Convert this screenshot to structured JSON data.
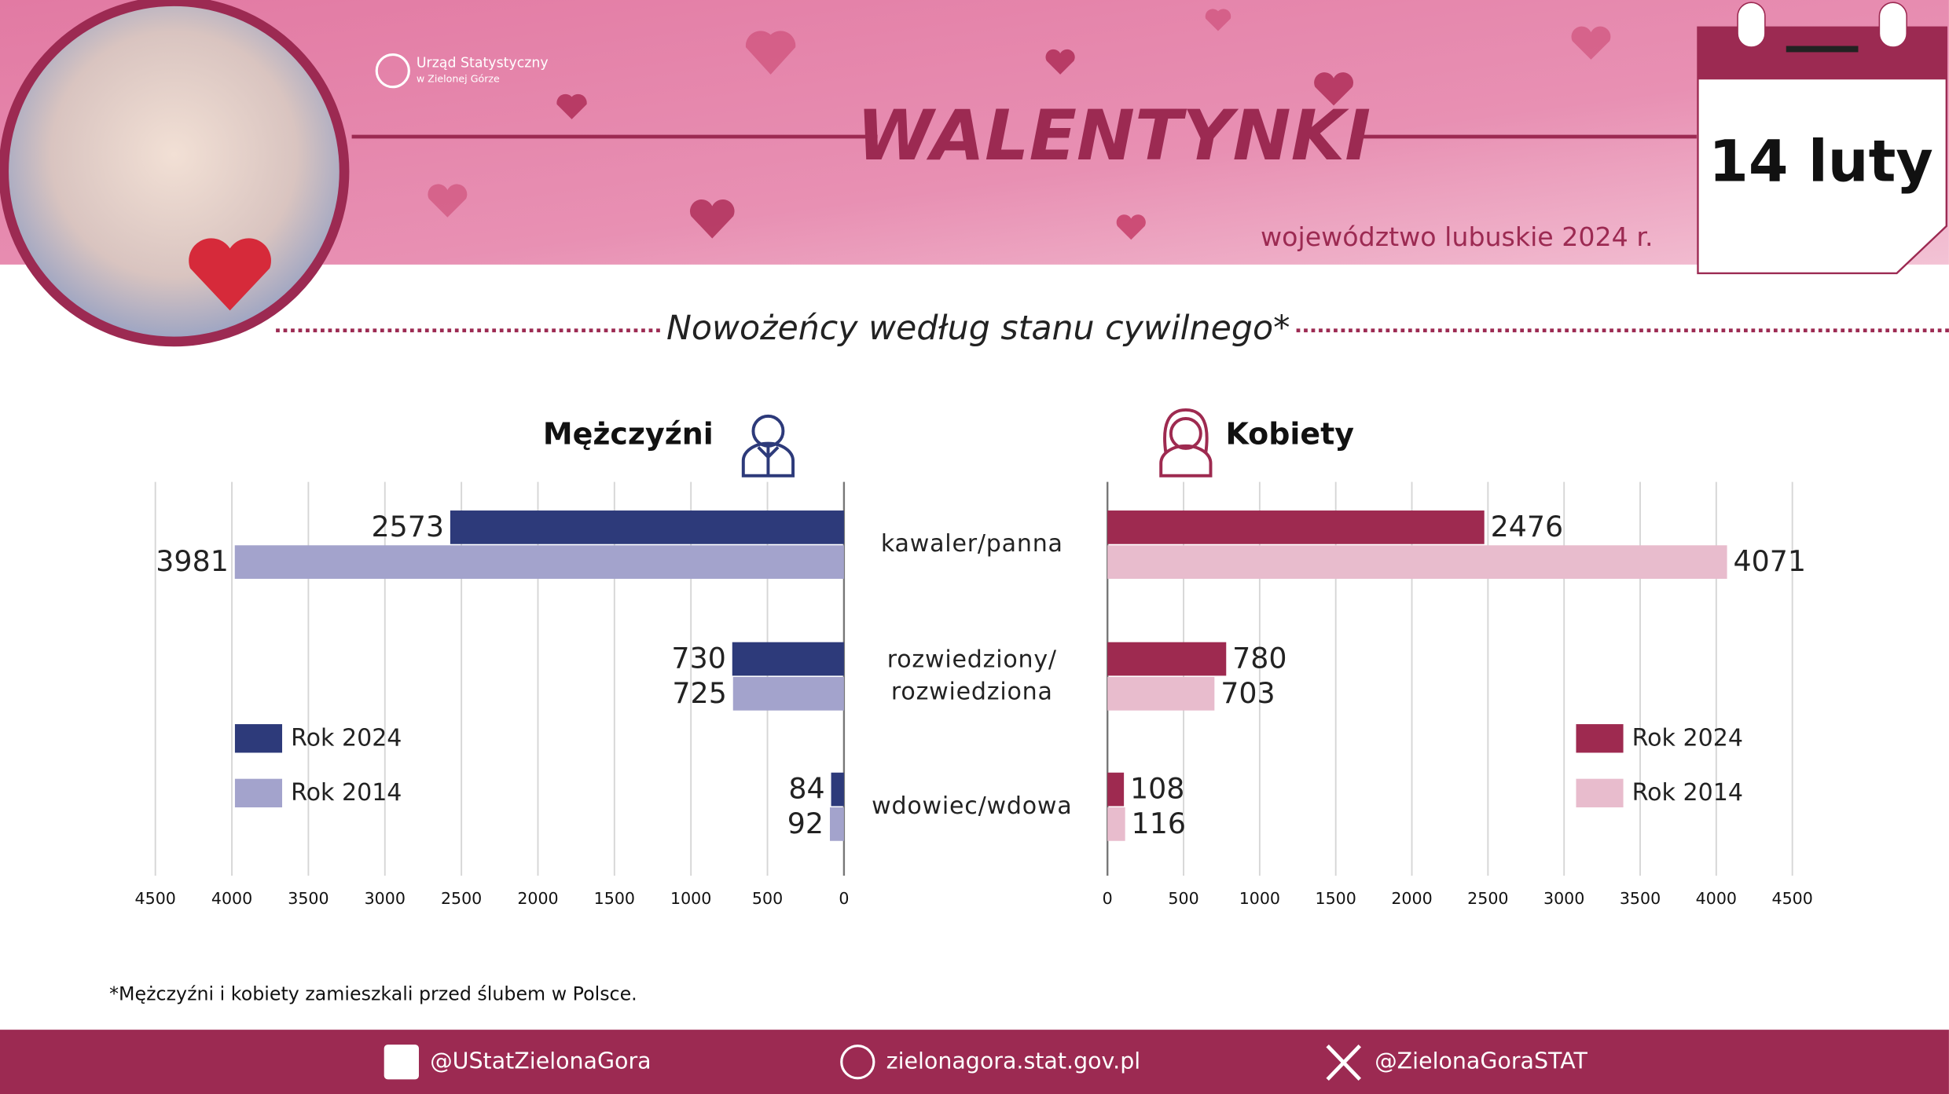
{
  "header": {
    "logo_line1": "Urząd Statystyczny",
    "logo_line2": "w Zielonej Górze",
    "title": "WALENTYNKI",
    "subtitle": "województwo lubuskie 2024 r.",
    "calendar": "14 luty"
  },
  "section_title": "Nowożeńcy według stanu cywilnego*",
  "chart_data": [
    {
      "type": "hbar",
      "title": "Mężczyźni",
      "categories": [
        "kawaler/panna",
        "rozwiedziony/\nrozwiedziona",
        "wdowiec/wdowa"
      ],
      "series": [
        {
          "name": "Rok 2024",
          "color": "#2d3a7a",
          "values": [
            2573,
            730,
            84
          ]
        },
        {
          "name": "Rok 2014",
          "color": "#a3a3cc",
          "values": [
            3981,
            725,
            92
          ]
        }
      ],
      "xlim": [
        4500,
        0
      ],
      "xticks": [
        4500,
        4000,
        3500,
        3000,
        2500,
        2000,
        1500,
        1000,
        500,
        0
      ],
      "grid": true,
      "legend": "bottom-left"
    },
    {
      "type": "hbar",
      "title": "Kobiety",
      "series": [
        {
          "name": "Rok 2024",
          "color": "#9e2a50",
          "values": [
            2476,
            780,
            108
          ]
        },
        {
          "name": "Rok 2014",
          "color": "#e8bccd",
          "values": [
            4071,
            703,
            116
          ]
        }
      ],
      "xlim": [
        0,
        4500
      ],
      "xticks": [
        0,
        500,
        1000,
        1500,
        2000,
        2500,
        3000,
        3500,
        4000,
        4500
      ],
      "grid": true,
      "legend": "bottom-right"
    }
  ],
  "footnote": "*Mężczyźni i kobiety zamieszkali przed ślubem w Polsce.",
  "footer": {
    "facebook": "@UStatZielonaGora",
    "website": "zielonagora.stat.gov.pl",
    "x": "@ZielonaGoraSTAT"
  }
}
